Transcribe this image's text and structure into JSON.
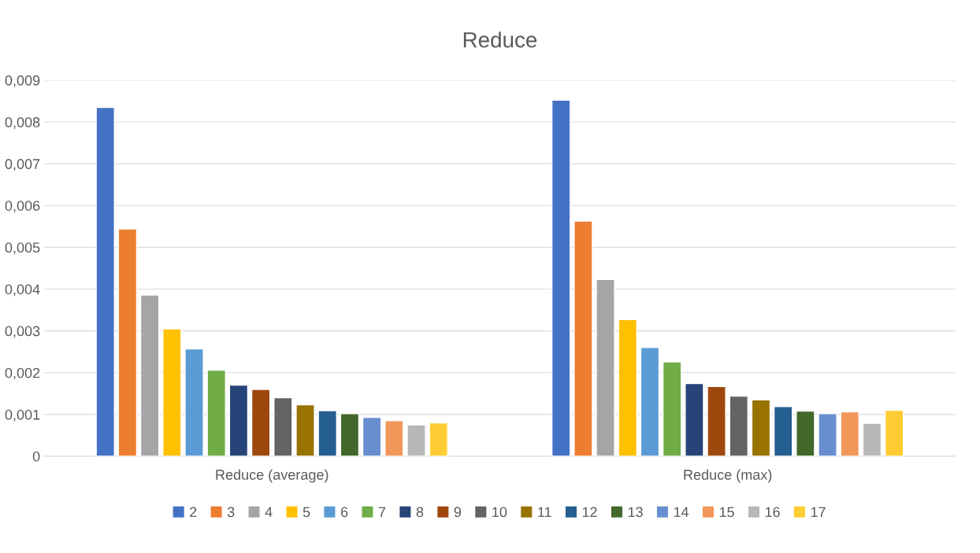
{
  "chart_data": {
    "type": "bar",
    "title": "Reduce",
    "categories": [
      "Reduce (average)",
      "Reduce (max)"
    ],
    "series": [
      {
        "name": "2",
        "color": "#4472c4",
        "values": [
          0.00835,
          0.00852
        ]
      },
      {
        "name": "3",
        "color": "#ed7d31",
        "values": [
          0.00544,
          0.00563
        ]
      },
      {
        "name": "4",
        "color": "#a5a5a5",
        "values": [
          0.00386,
          0.00423
        ]
      },
      {
        "name": "5",
        "color": "#ffc000",
        "values": [
          0.00305,
          0.00327
        ]
      },
      {
        "name": "6",
        "color": "#5b9bd5",
        "values": [
          0.00257,
          0.0026
        ]
      },
      {
        "name": "7",
        "color": "#70ad47",
        "values": [
          0.00206,
          0.00226
        ]
      },
      {
        "name": "8",
        "color": "#264478",
        "values": [
          0.0017,
          0.00174
        ]
      },
      {
        "name": "9",
        "color": "#9e480e",
        "values": [
          0.0016,
          0.00167
        ]
      },
      {
        "name": "10",
        "color": "#636363",
        "values": [
          0.0014,
          0.00144
        ]
      },
      {
        "name": "11",
        "color": "#997300",
        "values": [
          0.00123,
          0.00135
        ]
      },
      {
        "name": "12",
        "color": "#255e91",
        "values": [
          0.00109,
          0.00119
        ]
      },
      {
        "name": "13",
        "color": "#43682b",
        "values": [
          0.00102,
          0.00108
        ]
      },
      {
        "name": "14",
        "color": "#698ed0",
        "values": [
          0.00093,
          0.00102
        ]
      },
      {
        "name": "15",
        "color": "#f1975a",
        "values": [
          0.00085,
          0.00106
        ]
      },
      {
        "name": "16",
        "color": "#b7b7b7",
        "values": [
          0.00075,
          0.00079
        ]
      },
      {
        "name": "17",
        "color": "#ffcd33",
        "values": [
          0.0008,
          0.0011
        ]
      }
    ],
    "ylim": [
      0,
      0.009
    ],
    "yticks": [
      0,
      {
        "value": 0.001,
        "label": "0,001"
      },
      {
        "value": 0.002,
        "label": "0,002"
      },
      {
        "value": 0.003,
        "label": "0,003"
      },
      {
        "value": 0.004,
        "label": "0,004"
      },
      {
        "value": 0.005,
        "label": "0,005"
      },
      {
        "value": 0.006,
        "label": "0,006"
      },
      {
        "value": 0.007,
        "label": "0,007"
      },
      {
        "value": 0.008,
        "label": "0,008"
      },
      {
        "value": 0.009,
        "label": "0,009"
      }
    ],
    "grid": "y",
    "legend": "bottom"
  }
}
